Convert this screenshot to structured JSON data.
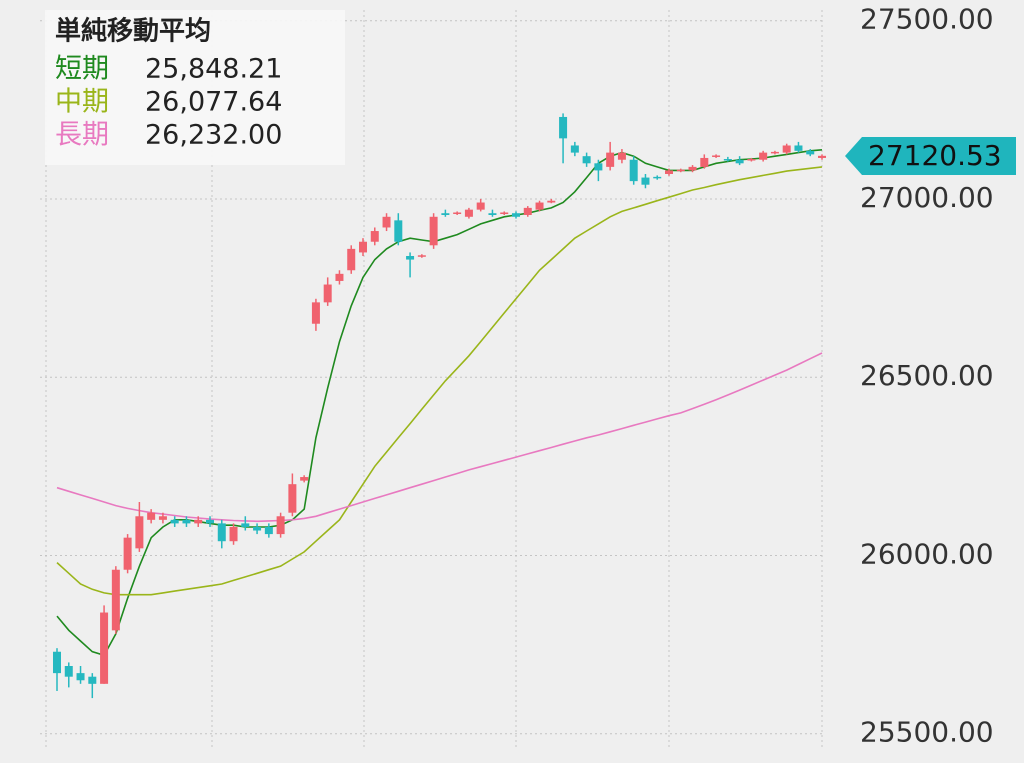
{
  "chart_data": {
    "type": "candlestick",
    "title": "単純移動平均",
    "ylim": [
      25460,
      27530
    ],
    "yticks": [
      {
        "value": 25500,
        "label": "25500.00"
      },
      {
        "value": 26000,
        "label": "26000.00"
      },
      {
        "value": 26500,
        "label": "26500.00"
      },
      {
        "value": 27000,
        "label": "27000.00"
      },
      {
        "value": 27500,
        "label": "27500.00"
      }
    ],
    "grid": true,
    "up_color": "#f0626e",
    "down_color": "#25b8c0",
    "last_price": 27120.53,
    "last_price_color": "#1fb5bd",
    "open": [
      25730,
      25690,
      25670,
      25660,
      25640,
      25790,
      25960,
      26020,
      26100,
      26100,
      26100,
      26100,
      26090,
      26100,
      26090,
      26040,
      26090,
      26080,
      26080,
      26060,
      26120,
      26210,
      26650,
      26710,
      26770,
      26800,
      26850,
      26880,
      26920,
      26940,
      26840,
      26838,
      26870,
      26960,
      26958,
      26950,
      26970,
      26960,
      26958,
      26960,
      26955,
      26970,
      26990,
      27230,
      27150,
      27120,
      27100,
      27090,
      27110,
      27110,
      27060,
      27062,
      27070,
      27078,
      27080,
      27090,
      27118,
      27112,
      27110,
      27108,
      27110,
      27128,
      27130,
      27150,
      27135,
      27115
    ],
    "high": [
      25740,
      25700,
      25690,
      25670,
      25860,
      25970,
      26060,
      26150,
      26130,
      26120,
      26110,
      26110,
      26110,
      26110,
      26100,
      26090,
      26110,
      26090,
      26090,
      26120,
      26230,
      26225,
      26720,
      26780,
      26800,
      26870,
      26890,
      26920,
      26960,
      26960,
      26850,
      26845,
      26960,
      26970,
      26965,
      26975,
      27000,
      26970,
      26965,
      26965,
      26980,
      26995,
      27000,
      27240,
      27160,
      27130,
      27110,
      27160,
      27140,
      27120,
      27070,
      27066,
      27085,
      27085,
      27095,
      27125,
      27125,
      27118,
      27120,
      27115,
      27135,
      27135,
      27155,
      27160,
      27140,
      27125
    ],
    "low": [
      25620,
      25630,
      25640,
      25600,
      25640,
      25780,
      25950,
      26010,
      26090,
      26090,
      26080,
      26080,
      26080,
      26080,
      26020,
      26030,
      26070,
      26060,
      26050,
      26050,
      26110,
      26205,
      26630,
      26700,
      26760,
      26790,
      26840,
      26870,
      26910,
      26870,
      26780,
      26835,
      26860,
      26950,
      26955,
      26945,
      26965,
      26950,
      26955,
      26945,
      26950,
      26965,
      26988,
      27100,
      27120,
      27090,
      27050,
      27080,
      27100,
      27040,
      27030,
      27054,
      27065,
      27075,
      27075,
      27085,
      27115,
      27105,
      27095,
      27105,
      27105,
      27125,
      27125,
      27130,
      27120,
      27110
    ],
    "close": [
      25670,
      25660,
      25650,
      25640,
      25840,
      25960,
      26050,
      26110,
      26120,
      26110,
      26090,
      26090,
      26100,
      26090,
      26040,
      26080,
      26080,
      26070,
      26060,
      26110,
      26200,
      26220,
      26710,
      26760,
      26790,
      26860,
      26880,
      26910,
      26950,
      26880,
      26830,
      26842,
      26950,
      26955,
      26962,
      26970,
      26990,
      26955,
      26962,
      26950,
      26975,
      26990,
      26995,
      27170,
      27130,
      27100,
      27080,
      27130,
      27130,
      27050,
      27040,
      27058,
      27080,
      27082,
      27090,
      27115,
      27122,
      27108,
      27100,
      27112,
      27130,
      27132,
      27150,
      27135,
      27125,
      27121
    ],
    "series": [
      {
        "name": "短期",
        "color": "#1f8a1f",
        "legend_value": {
          "value": 25848.21,
          "label": "25,848.21"
        },
        "values": [
          25830,
          25790,
          25760,
          25730,
          25720,
          25780,
          25880,
          25970,
          26050,
          26080,
          26100,
          26100,
          26095,
          26090,
          26085,
          26085,
          26080,
          26080,
          26080,
          26085,
          26100,
          26130,
          26330,
          26470,
          26600,
          26700,
          26780,
          26830,
          26860,
          26880,
          26890,
          26885,
          26880,
          26890,
          26900,
          26915,
          26930,
          26940,
          26950,
          26955,
          26960,
          26968,
          26975,
          26990,
          27020,
          27060,
          27100,
          27120,
          27130,
          27120,
          27100,
          27090,
          27080,
          27080,
          27080,
          27090,
          27100,
          27105,
          27110,
          27112,
          27115,
          27120,
          27125,
          27130,
          27135,
          27138
        ]
      },
      {
        "name": "中期",
        "color": "#9ab51a",
        "legend_value": {
          "value": 26077.64,
          "label": "26,077.64"
        },
        "values": [
          25980,
          25950,
          25920,
          25905,
          25895,
          25890,
          25890,
          25890,
          25890,
          25895,
          25900,
          25905,
          25910,
          25915,
          25920,
          25930,
          25940,
          25950,
          25960,
          25970,
          25990,
          26010,
          26040,
          26070,
          26100,
          26150,
          26200,
          26250,
          26290,
          26330,
          26370,
          26410,
          26450,
          26490,
          26525,
          26560,
          26600,
          26640,
          26680,
          26720,
          26760,
          26800,
          26830,
          26860,
          26890,
          26910,
          26930,
          26950,
          26965,
          26975,
          26985,
          26995,
          27005,
          27015,
          27025,
          27032,
          27040,
          27047,
          27054,
          27060,
          27066,
          27072,
          27078,
          27082,
          27086,
          27090
        ]
      },
      {
        "name": "長期",
        "color": "#e879c0",
        "legend_value": {
          "value": 26232.0,
          "label": "26,232.00"
        },
        "values": [
          26190,
          26180,
          26170,
          26160,
          26150,
          26140,
          26132,
          26126,
          26120,
          26116,
          26112,
          26108,
          26105,
          26102,
          26100,
          26098,
          26097,
          26096,
          26097,
          26098,
          26100,
          26104,
          26110,
          26120,
          26130,
          26140,
          26150,
          26160,
          26170,
          26180,
          26190,
          26200,
          26210,
          26220,
          26230,
          26240,
          26249,
          26258,
          26267,
          26276,
          26285,
          26294,
          26303,
          26312,
          26321,
          26330,
          26338,
          26347,
          26356,
          26365,
          26374,
          26383,
          26392,
          26400,
          26412,
          26424,
          26437,
          26450,
          26464,
          26478,
          26492,
          26506,
          26520,
          26536,
          26552,
          26568
        ]
      }
    ]
  }
}
